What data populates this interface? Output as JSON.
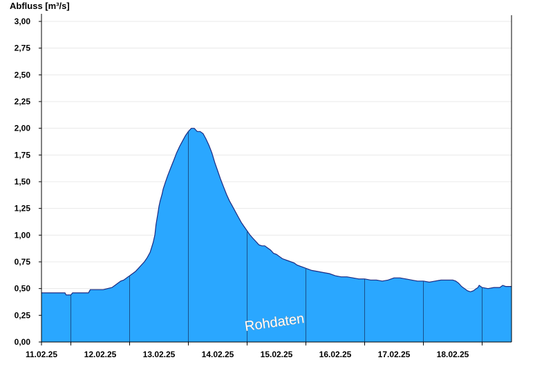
{
  "chart_data": {
    "type": "area",
    "ylabel": "Abfluss [m³/s]",
    "ylim": [
      0,
      3.0
    ],
    "y_ticks": [
      "0,00",
      "0,25",
      "0,50",
      "0,75",
      "1,00",
      "1,25",
      "1,50",
      "1,75",
      "2,00",
      "2,25",
      "2,50",
      "2,75",
      "3,00"
    ],
    "x_ticks": [
      "11.02.25",
      "12.02.25",
      "13.02.25",
      "14.02.25",
      "15.02.25",
      "16.02.25",
      "17.02.25",
      "18.02.25"
    ],
    "x_range_days": [
      10.5,
      18.5
    ],
    "grid": true,
    "watermark": "Rohdaten",
    "colors": {
      "fill": "#2aa7ff",
      "line": "#1c2a80",
      "grid": "#e8e8e8",
      "day_line": "#1a4f8a"
    },
    "x": [
      10.5,
      10.9,
      10.92,
      11.0,
      11.03,
      11.3,
      11.33,
      11.5,
      11.55,
      11.7,
      11.75,
      11.8,
      11.85,
      11.9,
      11.95,
      12.0,
      12.05,
      12.1,
      12.15,
      12.2,
      12.25,
      12.3,
      12.35,
      12.4,
      12.43,
      12.45,
      12.48,
      12.5,
      12.52,
      12.55,
      12.57,
      12.6,
      12.63,
      12.65,
      12.7,
      12.75,
      12.8,
      12.85,
      12.9,
      12.95,
      13.0,
      13.05,
      13.1,
      13.15,
      13.2,
      13.25,
      13.3,
      13.35,
      13.4,
      13.45,
      13.5,
      13.55,
      13.6,
      13.65,
      13.7,
      13.75,
      13.8,
      13.85,
      13.9,
      13.95,
      14.0,
      14.05,
      14.1,
      14.15,
      14.2,
      14.25,
      14.3,
      14.35,
      14.4,
      14.45,
      14.5,
      14.55,
      14.6,
      14.7,
      14.8,
      14.85,
      14.9,
      14.95,
      15.0,
      15.1,
      15.2,
      15.3,
      15.4,
      15.5,
      15.6,
      15.7,
      15.8,
      15.9,
      16.0,
      16.1,
      16.2,
      16.3,
      16.4,
      16.5,
      16.6,
      16.7,
      16.8,
      16.9,
      17.0,
      17.1,
      17.2,
      17.3,
      17.4,
      17.5,
      17.55,
      17.6,
      17.65,
      17.7,
      17.75,
      17.8,
      17.85,
      17.9,
      17.93,
      17.95,
      18.0,
      18.1,
      18.2,
      18.3,
      18.35,
      18.4,
      18.5
    ],
    "y": [
      0.46,
      0.46,
      0.44,
      0.44,
      0.46,
      0.46,
      0.49,
      0.49,
      0.49,
      0.51,
      0.53,
      0.55,
      0.57,
      0.58,
      0.6,
      0.62,
      0.64,
      0.66,
      0.69,
      0.72,
      0.75,
      0.79,
      0.84,
      0.93,
      1.0,
      1.1,
      1.2,
      1.27,
      1.32,
      1.38,
      1.43,
      1.48,
      1.53,
      1.56,
      1.63,
      1.7,
      1.77,
      1.83,
      1.88,
      1.93,
      1.97,
      2.0,
      2.0,
      1.97,
      1.97,
      1.95,
      1.9,
      1.84,
      1.77,
      1.68,
      1.6,
      1.52,
      1.45,
      1.38,
      1.32,
      1.27,
      1.22,
      1.17,
      1.12,
      1.08,
      1.04,
      1.0,
      0.97,
      0.94,
      0.91,
      0.9,
      0.9,
      0.88,
      0.86,
      0.83,
      0.82,
      0.8,
      0.78,
      0.76,
      0.74,
      0.72,
      0.71,
      0.7,
      0.69,
      0.67,
      0.66,
      0.65,
      0.64,
      0.62,
      0.61,
      0.61,
      0.6,
      0.59,
      0.59,
      0.58,
      0.58,
      0.57,
      0.58,
      0.6,
      0.6,
      0.59,
      0.58,
      0.57,
      0.57,
      0.56,
      0.57,
      0.58,
      0.58,
      0.58,
      0.57,
      0.55,
      0.52,
      0.5,
      0.48,
      0.47,
      0.48,
      0.5,
      0.51,
      0.53,
      0.51,
      0.5,
      0.51,
      0.51,
      0.53,
      0.52,
      0.52
    ]
  }
}
